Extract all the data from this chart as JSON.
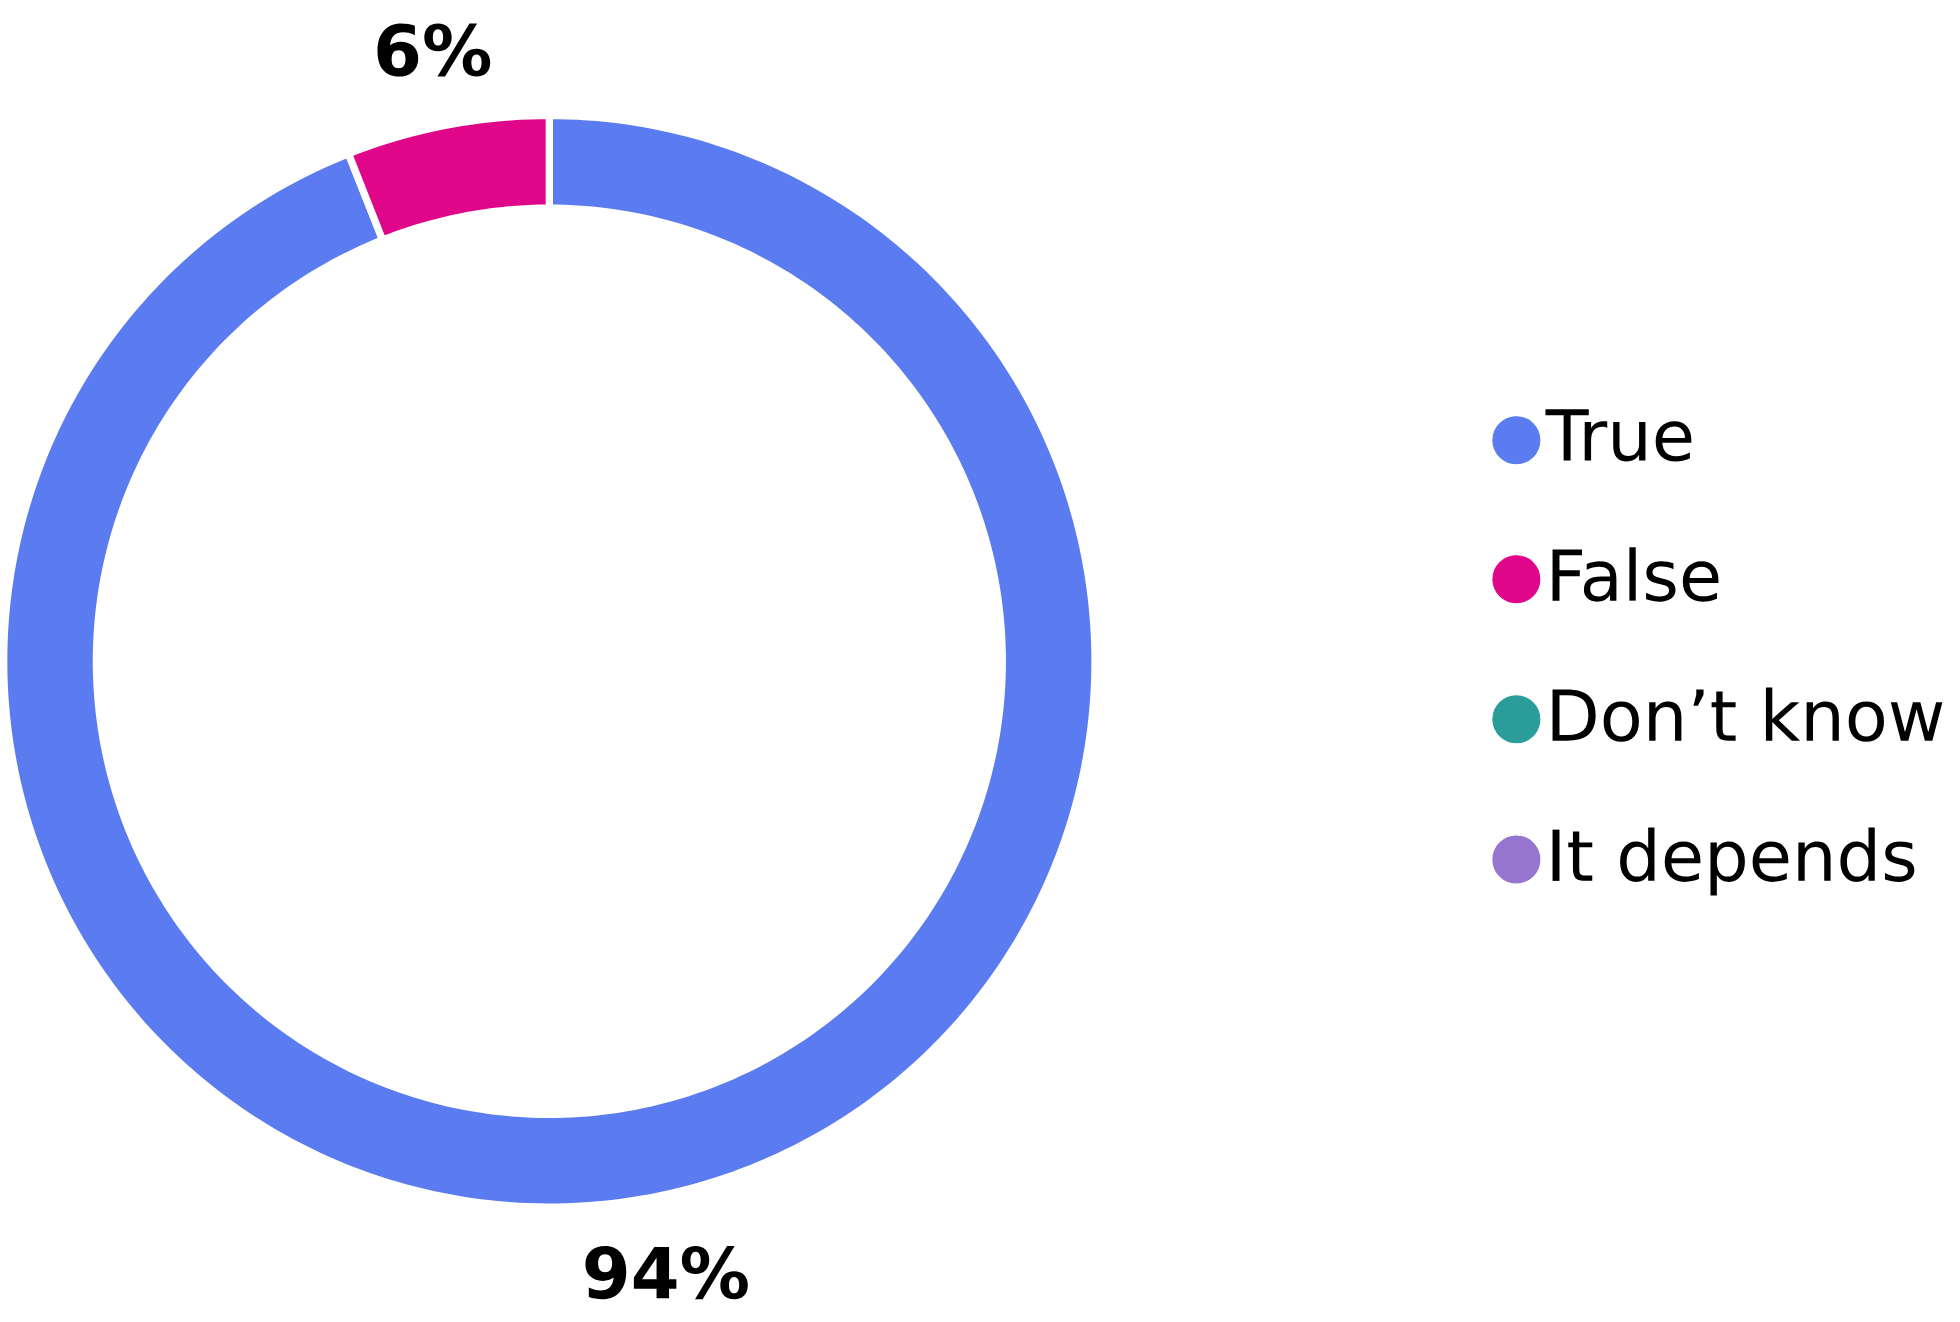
{
  "chart_data": {
    "type": "donut",
    "categories": [
      "True",
      "False",
      "Don’t know",
      "It depends"
    ],
    "values": [
      94,
      6,
      0,
      0
    ],
    "colors": [
      "#5b7cf0",
      "#e0068a",
      "#2a9d9a",
      "#9575cd"
    ],
    "value_labels": [
      "94%",
      "6%",
      null,
      null
    ],
    "legend": "right"
  }
}
